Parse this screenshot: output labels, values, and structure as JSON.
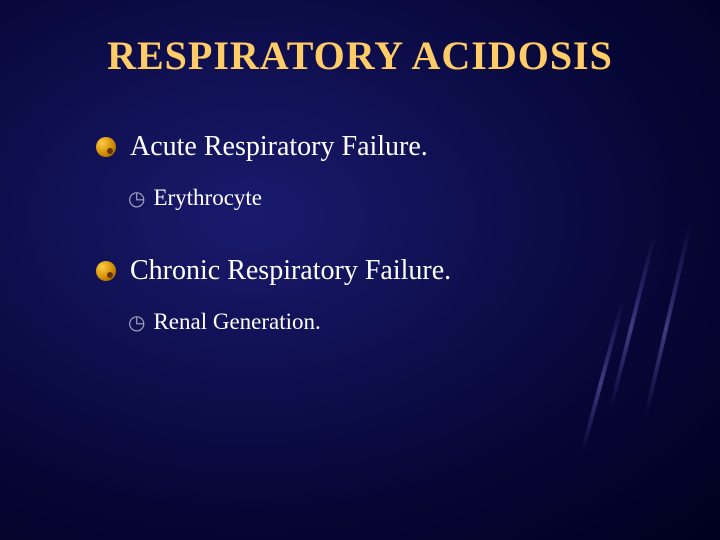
{
  "title": "RESPIRATORY ACIDOSIS",
  "colors": {
    "title_color": "#ffcc66",
    "text_color": "#ffffff",
    "bg_inner": "#1a1a6e",
    "bg_outer": "#000020",
    "bullet_gold": "#ffcc44",
    "sub_bullet": "#a8a8c0"
  },
  "typography": {
    "title_fontsize": 40,
    "l1_fontsize": 28,
    "l2_fontsize": 23,
    "font_family": "Times New Roman"
  },
  "items": [
    {
      "text": "Acute Respiratory Failure.",
      "sub": [
        {
          "text": "Erythrocyte"
        }
      ]
    },
    {
      "text": "Chronic Respiratory Failure.",
      "sub": [
        {
          "text": "Renal Generation."
        }
      ]
    }
  ]
}
